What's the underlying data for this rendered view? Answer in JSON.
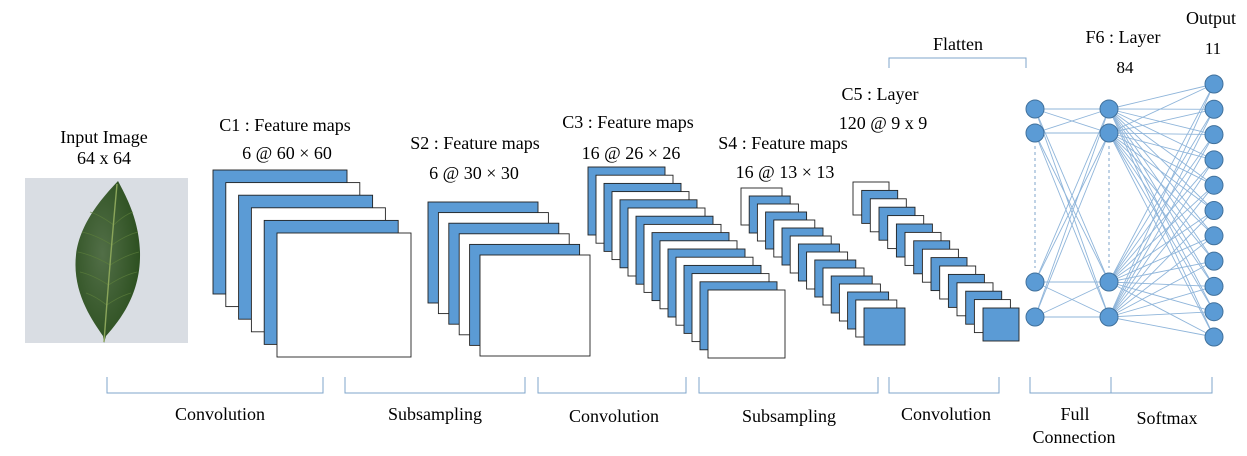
{
  "input": {
    "title": "Input Image",
    "size": "64 x 64"
  },
  "c1": {
    "title": "C1 : Feature maps",
    "dims": "6 @ 60 × 60"
  },
  "s2": {
    "title": "S2 : Feature maps",
    "dims": "6 @ 30 × 30"
  },
  "c3": {
    "title": "C3 : Feature maps",
    "dims": "16 @ 26 × 26"
  },
  "s4": {
    "title": "S4 : Feature maps",
    "dims": "16 @ 13 × 13"
  },
  "c5": {
    "title": "C5 : Layer",
    "dims": "120 @ 9 x 9"
  },
  "flatten": {
    "label": "Flatten"
  },
  "f6": {
    "title": "F6 : Layer",
    "dims": "84"
  },
  "output": {
    "title": "Output",
    "dims": "11"
  },
  "stages": [
    {
      "label": "Convolution"
    },
    {
      "label": "Subsampling"
    },
    {
      "label": "Convolution"
    },
    {
      "label": "Subsampling"
    },
    {
      "label": "Convolution"
    },
    {
      "label_line1": "Full",
      "label_line2": "Connection"
    },
    {
      "label": "Softmax"
    }
  ],
  "colors": {
    "feature_map_blue": "#5b9bd5",
    "feature_map_white": "#ffffff",
    "feature_map_outline": "#222222",
    "neuron": "#5b9bd5",
    "neuron_outline": "#41719c",
    "connection": "#8fb5da",
    "bracket": "#7fa6cb",
    "leaf": "#2c4f1f",
    "photo_background": "#d9dde3"
  }
}
